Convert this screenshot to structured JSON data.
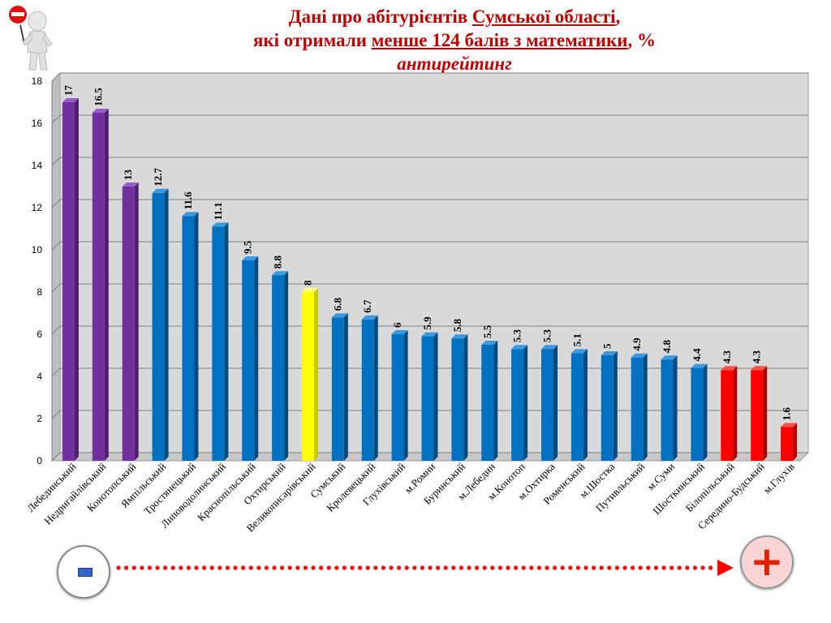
{
  "title": {
    "line1_a": "Дані про абітурієнтів ",
    "line1_b": "Сумської   області",
    "line1_c": ",",
    "line2_a": "які отримали ",
    "line2_b": "менше 124 балів  з математики",
    "line2_c": ", %",
    "line3": "антирейтинг"
  },
  "legend_arrow": {
    "minus": "-",
    "plus": "+"
  },
  "colors": {
    "purple": "#7030a0",
    "blue": "#0070c0",
    "yellow": "#ffff00",
    "red": "#ff0000",
    "plot_bg": "#d9d9d9",
    "title": "#c00000"
  },
  "chart_data": {
    "type": "bar",
    "title": "Дані про абітурієнтів Сумської   області, які отримали менше 124 балів  з математики, % антирейтинг",
    "categories": [
      "Лебединський",
      "Недригайлівський",
      "Конотопський",
      "Ямпільський",
      "Тростянецький",
      "Липоводолинський",
      "Краснопільський",
      "Охтирський",
      "Великописарівський",
      "Сумський",
      "Кролевецький",
      "Глухівський",
      "м.Ромни",
      "Буринський",
      "м.Лебедин",
      "м.Конотоп",
      "м.Охтирка",
      "Роменський",
      "м.Шостка",
      "Путивльський",
      "м.Суми",
      "Шосткинський",
      "Білопільський",
      "Середино-Будський",
      "м.Глухів"
    ],
    "values": [
      17,
      16.5,
      13,
      12.7,
      11.6,
      11.1,
      9.5,
      8.8,
      8,
      6.8,
      6.7,
      6,
      5.9,
      5.8,
      5.5,
      5.3,
      5.3,
      5.1,
      5,
      4.9,
      4.8,
      4.4,
      4.3,
      4.3,
      1.6
    ],
    "value_labels": [
      "17",
      "16.5",
      "13",
      "12.7",
      "11.6",
      "11.1",
      "9.5",
      "8.8",
      "8",
      "6.8",
      "6.7",
      "6",
      "5.9",
      "5.8",
      "5.5",
      "5.3",
      "5.3",
      "5.1",
      "5",
      "4.9",
      "4.8",
      "4.4",
      "4.3",
      "4.3",
      "1.6"
    ],
    "bar_colors": [
      "purple",
      "purple",
      "purple",
      "blue",
      "blue",
      "blue",
      "blue",
      "blue",
      "yellow",
      "blue",
      "blue",
      "blue",
      "blue",
      "blue",
      "blue",
      "blue",
      "blue",
      "blue",
      "blue",
      "blue",
      "blue",
      "blue",
      "red",
      "red",
      "red"
    ],
    "ylim": [
      0,
      18
    ],
    "yticks": [
      "0",
      "2",
      "4",
      "6",
      "8",
      "10",
      "12",
      "14",
      "16",
      "18"
    ],
    "grid": true,
    "xlabel": "",
    "ylabel": ""
  }
}
